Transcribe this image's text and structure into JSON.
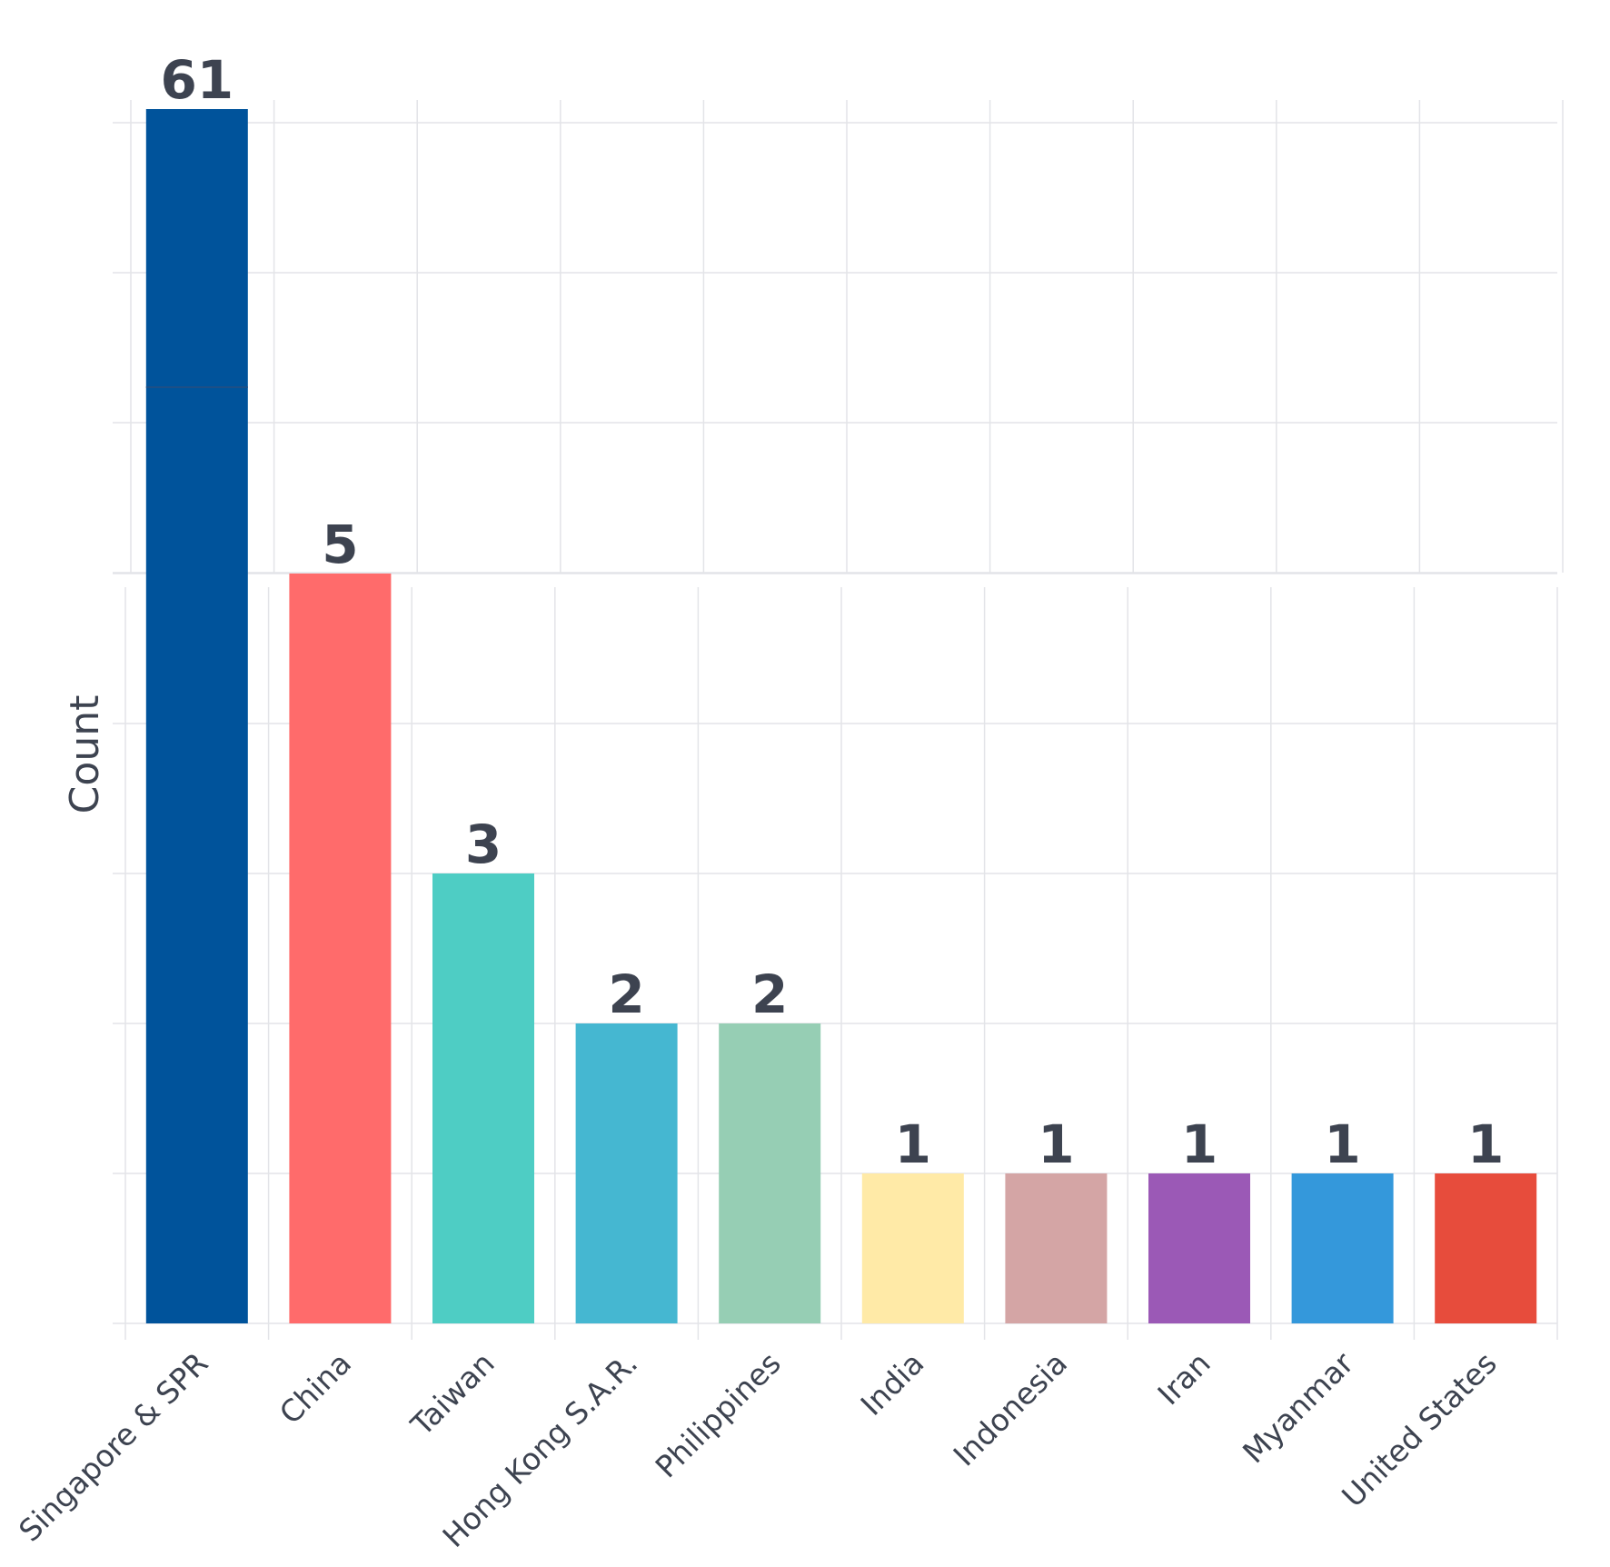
{
  "chart_data": {
    "type": "bar",
    "title": "",
    "xlabel": "",
    "ylabel": "Count",
    "categories": [
      "Singapore & SPR",
      "China",
      "Taiwan",
      "Hong Kong S.A.R.",
      "Philippines",
      "India",
      "Indonesia",
      "Iran",
      "Myanmar",
      "United States"
    ],
    "values": [
      61,
      5,
      3,
      2,
      2,
      1,
      1,
      1,
      1,
      1
    ],
    "colors": [
      "#00539b",
      "#ff6b6b",
      "#4ecdc4",
      "#45b7d1",
      "#96ceb4",
      "#ffeaa7",
      "#d4a5a5",
      "#9b59b6",
      "#3498db",
      "#e74c3c"
    ],
    "axis_break": true,
    "grid": true,
    "legend": "none"
  }
}
